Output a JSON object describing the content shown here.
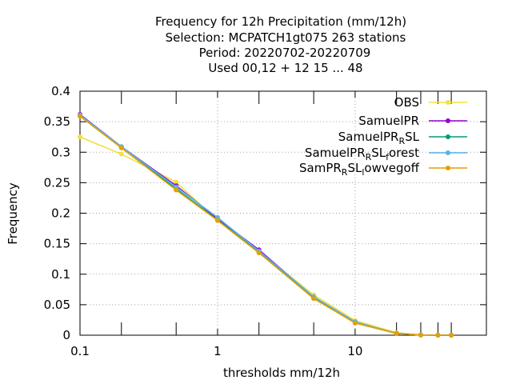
{
  "chart_data": {
    "type": "line",
    "title_lines": [
      "Frequency  for 12h Precipitation (mm/12h)",
      "Selection: MCPATCH1gt075    263 stations",
      "Period: 20220702-20220709",
      "Used  00,12  + 12 15 ... 48"
    ],
    "xlabel": "thresholds mm/12h",
    "ylabel": "Frequency",
    "xscale": "log",
    "xlim": [
      0.1,
      90
    ],
    "ylim": [
      0,
      0.4
    ],
    "xticks": [
      0.1,
      1,
      10
    ],
    "xtick_labels": [
      "0.1",
      "1",
      "10"
    ],
    "x_minor_ticks": [
      0.2,
      0.5,
      2,
      5,
      20,
      30,
      40,
      50
    ],
    "yticks": [
      0,
      0.05,
      0.1,
      0.15,
      0.2,
      0.25,
      0.3,
      0.35,
      0.4
    ],
    "ytick_labels": [
      "0",
      "0.05",
      "0.1",
      "0.15",
      "0.2",
      "0.25",
      "0.3",
      "0.35",
      "0.4"
    ],
    "grid": true,
    "legend_position": "top-right",
    "x": [
      0.1,
      0.2,
      0.5,
      1,
      2,
      5,
      10,
      20,
      30,
      40,
      50
    ],
    "series": [
      {
        "name": "OBS",
        "color": "#f0e040",
        "values": [
          0.325,
          0.297,
          0.251,
          0.188,
          0.137,
          0.066,
          0.024,
          0.004,
          0.0005,
          0.0002,
          0.0001
        ]
      },
      {
        "name": "SamuelPR",
        "color": "#9400d3",
        "values": [
          0.362,
          0.309,
          0.245,
          0.191,
          0.14,
          0.062,
          0.021,
          0.003,
          0.0004,
          0.0001,
          0.0
        ]
      },
      {
        "name": "SamuelPR_RSL",
        "color": "#009e73",
        "values": [
          0.36,
          0.308,
          0.24,
          0.189,
          0.136,
          0.061,
          0.02,
          0.003,
          0.0003,
          0.0001,
          0.0
        ]
      },
      {
        "name": "SamuelPR_RSL_forest",
        "color": "#56b4e9",
        "values": [
          0.361,
          0.309,
          0.243,
          0.193,
          0.138,
          0.063,
          0.022,
          0.003,
          0.0004,
          0.0001,
          0.0
        ]
      },
      {
        "name": "SamPR_RSL_owvegoff",
        "color": "#e69f00",
        "values": [
          0.359,
          0.307,
          0.238,
          0.188,
          0.135,
          0.06,
          0.02,
          0.003,
          0.0003,
          0.0001,
          0.0
        ]
      }
    ],
    "legend_entries": [
      {
        "base": "OBS",
        "sub": "",
        "tail": ""
      },
      {
        "base": "SamuelPR",
        "sub": "",
        "tail": ""
      },
      {
        "base": "SamuelPR",
        "sub": "R",
        "tail": "SL"
      },
      {
        "base": "SamuelPR",
        "sub": "R",
        "tail": "SL",
        "sub2": "f",
        "tail2": "orest"
      },
      {
        "base": "SamPR",
        "sub": "R",
        "tail": "SL",
        "sub2": "l",
        "tail2": "owvegoff"
      }
    ]
  }
}
